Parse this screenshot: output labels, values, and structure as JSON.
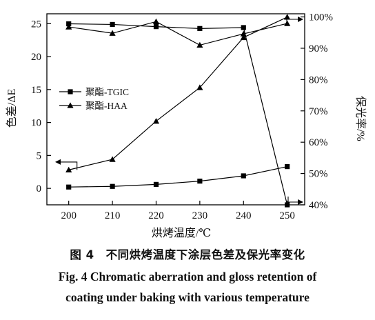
{
  "chart_data": {
    "type": "line",
    "x": [
      200,
      210,
      220,
      230,
      240,
      250
    ],
    "xlabel": "烘烤温度/℃",
    "xlim": [
      195,
      254
    ],
    "xticks": [
      "200",
      "210",
      "220",
      "230",
      "240",
      "250"
    ],
    "ylabel_left": "色差/ΔE",
    "ylim_left": [
      -2.5,
      26.5
    ],
    "yticks_left": [
      "0",
      "5",
      "10",
      "15",
      "20",
      "25"
    ],
    "ylabel_right": "保光率/%",
    "ylim_right": [
      40,
      101
    ],
    "yticks_right": [
      "40%",
      "50%",
      "60%",
      "70%",
      "80%",
      "90%",
      "100%"
    ],
    "legend_position": "upper-left",
    "series": [
      {
        "name": "聚酯-TGIC",
        "metric": "色差",
        "axis": "left",
        "marker": "square",
        "values": [
          0.2,
          0.3,
          0.6,
          1.1,
          1.9,
          3.3
        ]
      },
      {
        "name": "聚酯-HAA",
        "metric": "色差",
        "axis": "left",
        "marker": "triangle",
        "values": [
          2.8,
          4.4,
          10.2,
          15.3,
          22.9,
          26.0
        ]
      },
      {
        "name": "聚酯-TGIC",
        "metric": "保光率",
        "axis": "right",
        "marker": "square",
        "values": [
          97.8,
          97.6,
          96.9,
          96.3,
          96.6,
          40.0
        ]
      },
      {
        "name": "聚酯-HAA",
        "metric": "保光率",
        "axis": "right",
        "marker": "triangle",
        "values": [
          96.8,
          94.8,
          98.5,
          91.0,
          94.6,
          97.9
        ]
      }
    ]
  },
  "caption": {
    "zh": "图 4　不同烘烤温度下涂层色差及保光率变化",
    "en_line1": "Fig. 4   Chromatic aberration and gloss retention of",
    "en_line2": "coating under baking with various temperature"
  }
}
